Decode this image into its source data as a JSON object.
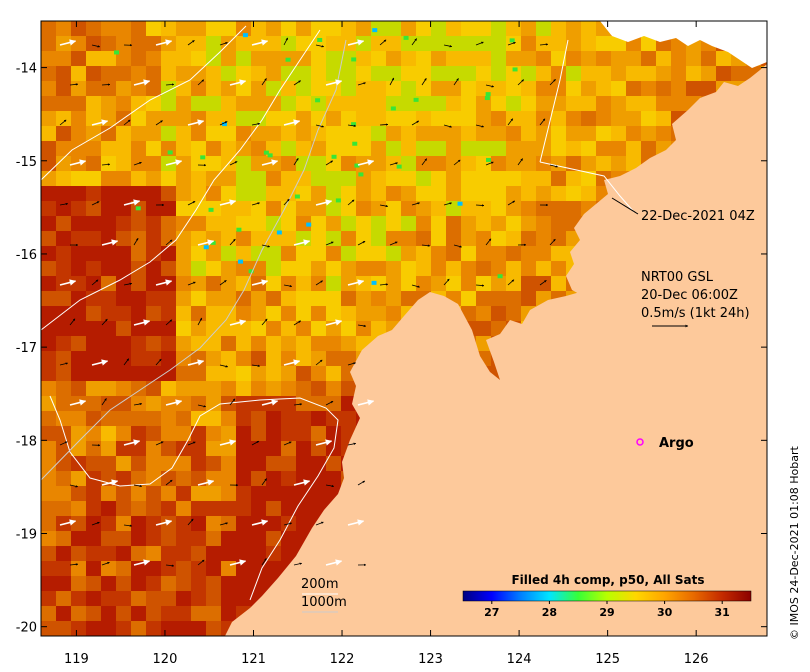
{
  "map": {
    "lon_range": [
      118.6,
      126.8
    ],
    "lat_range": [
      -20.1,
      -13.5
    ],
    "x_ticks": [
      "119",
      "120",
      "121",
      "122",
      "123",
      "124",
      "125",
      "126"
    ],
    "y_ticks": [
      "-14",
      "-15",
      "-16",
      "-17",
      "-18",
      "-19",
      "-20"
    ],
    "land_color": "#fdc99b",
    "cloud_color": "#ffffff"
  },
  "annotations": {
    "timestamp": "22-Dec-2021 04Z",
    "model_line1": "NRT00 GSL",
    "model_line2": "20-Dec 06:00Z",
    "model_line3": "0.5m/s (1kt 24h)",
    "argo_label": "Argo",
    "isobath_1": "200m",
    "isobath_2": "1000m"
  },
  "legend": {
    "title": "Filled 4h comp, p50, All Sats",
    "ticks": [
      "27",
      "28",
      "29",
      "30",
      "31"
    ],
    "colors": [
      "#00007f",
      "#0000ff",
      "#007fff",
      "#00e5ff",
      "#37ff37",
      "#b8ff00",
      "#ffd700",
      "#ffa500",
      "#e86a00",
      "#c42a00",
      "#8b0000"
    ]
  },
  "credit": "© IMOS 24-Dec-2021 01:08 Hobart"
}
